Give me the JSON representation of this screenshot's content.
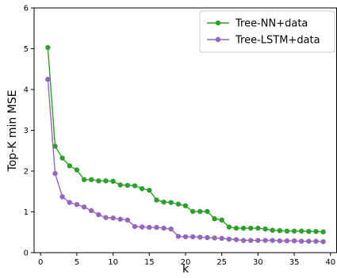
{
  "chart_data": {
    "type": "line",
    "title": "",
    "xlabel": "k",
    "ylabel": "Top-K min MSE",
    "xlim": [
      -0.9,
      40.9
    ],
    "ylim": [
      0,
      6
    ],
    "xticks": [
      0,
      5,
      10,
      15,
      20,
      25,
      30,
      35,
      40
    ],
    "yticks": [
      0,
      1,
      2,
      3,
      4,
      5,
      6
    ],
    "grid": false,
    "legend_position": "top-right",
    "x": [
      1,
      2,
      3,
      4,
      5,
      6,
      7,
      8,
      9,
      10,
      11,
      12,
      13,
      14,
      15,
      16,
      17,
      18,
      19,
      20,
      21,
      22,
      23,
      24,
      25,
      26,
      27,
      28,
      29,
      30,
      31,
      32,
      33,
      34,
      35,
      36,
      37,
      38,
      39
    ],
    "series": [
      {
        "name": "Tree-NN+data",
        "color": "#2ca02c",
        "values": [
          5.03,
          2.61,
          2.32,
          2.13,
          2.03,
          1.79,
          1.79,
          1.76,
          1.76,
          1.75,
          1.66,
          1.65,
          1.64,
          1.57,
          1.53,
          1.29,
          1.24,
          1.23,
          1.19,
          1.15,
          1.01,
          1.01,
          1.01,
          0.83,
          0.8,
          0.63,
          0.6,
          0.6,
          0.6,
          0.6,
          0.58,
          0.55,
          0.54,
          0.53,
          0.53,
          0.53,
          0.52,
          0.52,
          0.51
        ]
      },
      {
        "name": "Tree-LSTM+data",
        "color": "#9467bd",
        "values": [
          4.25,
          1.94,
          1.37,
          1.23,
          1.18,
          1.12,
          1.03,
          0.93,
          0.86,
          0.85,
          0.82,
          0.8,
          0.64,
          0.63,
          0.62,
          0.62,
          0.6,
          0.58,
          0.4,
          0.39,
          0.39,
          0.38,
          0.37,
          0.36,
          0.35,
          0.33,
          0.32,
          0.3,
          0.3,
          0.3,
          0.3,
          0.3,
          0.29,
          0.29,
          0.29,
          0.28,
          0.28,
          0.28,
          0.27
        ]
      }
    ]
  }
}
